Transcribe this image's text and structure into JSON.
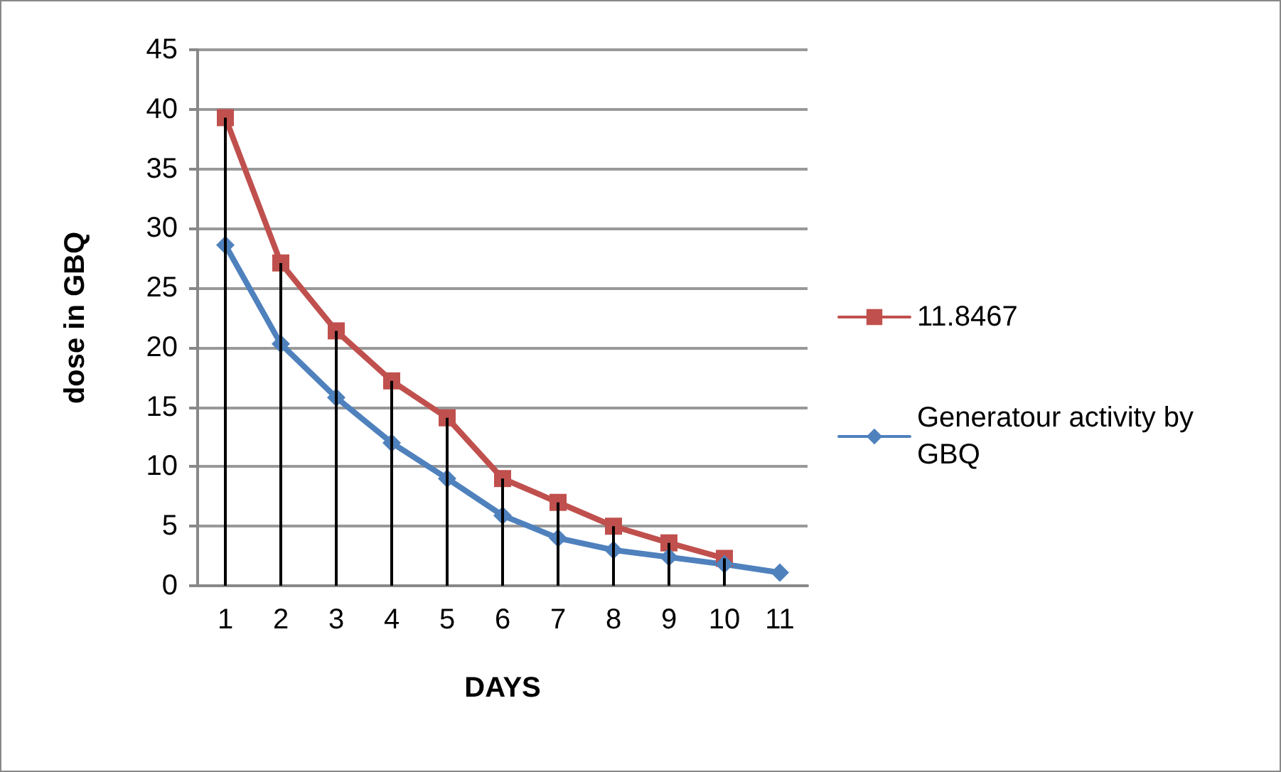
{
  "chart_data": {
    "type": "line",
    "xlabel": "DAYS",
    "ylabel": "dose in GBQ",
    "categories": [
      "1",
      "2",
      "3",
      "4",
      "5",
      "6",
      "7",
      "8",
      "9",
      "10",
      "11"
    ],
    "series": [
      {
        "name": "11.8467",
        "color": "#c0504d",
        "marker": "square",
        "values": [
          39.3,
          27.1,
          21.4,
          17.2,
          14.1,
          9.0,
          7.0,
          5.0,
          3.6,
          2.3,
          null
        ],
        "errors": [
          [
            0,
            39.3
          ],
          [
            0,
            27.1
          ],
          [
            0,
            21.4
          ],
          [
            0,
            17.2
          ],
          [
            0,
            14.1
          ],
          [
            0,
            9.0
          ],
          [
            0,
            7.0
          ],
          [
            0,
            5.0
          ],
          [
            0,
            3.6
          ],
          [
            0,
            2.3
          ],
          null
        ]
      },
      {
        "name": "Generatour activity by GBQ",
        "color": "#4f81bd",
        "marker": "diamond",
        "values": [
          28.6,
          20.3,
          15.8,
          12.0,
          9.0,
          5.9,
          4.0,
          3.0,
          2.4,
          1.8,
          1.1
        ]
      }
    ],
    "ylim": [
      0,
      45
    ],
    "yticks": [
      0,
      5,
      10,
      15,
      20,
      25,
      30,
      35,
      40,
      45
    ],
    "grid": "y",
    "legend": "right"
  }
}
